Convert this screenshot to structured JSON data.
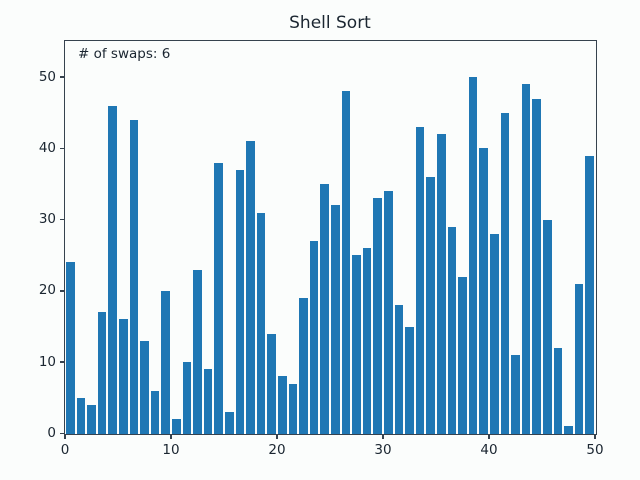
{
  "figure": {
    "background_color": "#fbfdfc"
  },
  "chart_data": {
    "type": "bar",
    "title": "Shell Sort",
    "annotation": "# of swaps: 6",
    "values": [
      24,
      5,
      4,
      17,
      46,
      16,
      44,
      13,
      6,
      20,
      2,
      10,
      23,
      9,
      38,
      3,
      37,
      41,
      31,
      14,
      8,
      7,
      19,
      27,
      35,
      32,
      48,
      25,
      26,
      33,
      34,
      18,
      15,
      43,
      36,
      42,
      29,
      22,
      50,
      40,
      28,
      45,
      11,
      49,
      47,
      30,
      12,
      1,
      21,
      39
    ],
    "xticks": [
      0,
      10,
      20,
      30,
      40,
      50
    ],
    "yticks": [
      0,
      10,
      20,
      30,
      40,
      50
    ],
    "xlim": [
      0,
      50
    ],
    "ylim": [
      0,
      55
    ],
    "xlabel": "",
    "ylabel": "",
    "grid": false,
    "legend": false,
    "bar_color": "#1f77b4",
    "text_color": "#1b2631",
    "spine_color": "#36424e"
  }
}
